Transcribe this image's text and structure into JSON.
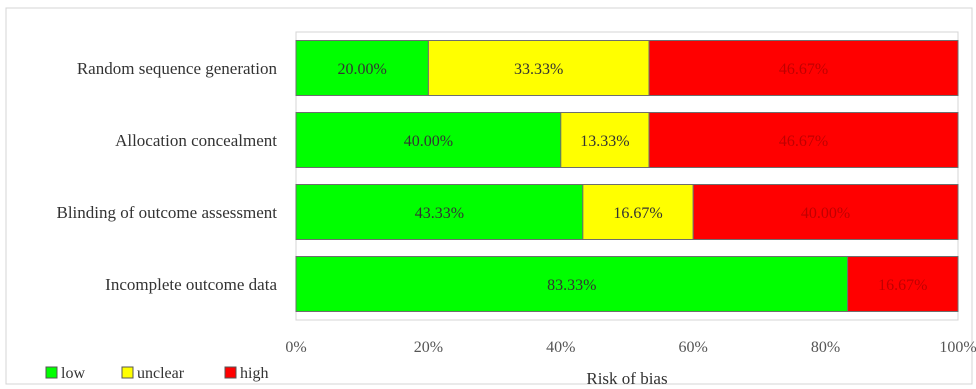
{
  "chart_data": {
    "type": "bar",
    "orientation": "horizontal",
    "stacked": true,
    "percent_scale": true,
    "categories": [
      "Random sequence generation",
      "Allocation concealment",
      "Blinding of outcome assessment",
      "Incomplete outcome data"
    ],
    "series": [
      {
        "name": "low",
        "color": "#00ff00",
        "label_color": "#333333",
        "values": [
          20.0,
          40.0,
          43.33,
          83.33
        ],
        "labels": [
          "20.00%",
          "40.00%",
          "43.33%",
          "83.33%"
        ]
      },
      {
        "name": "unclear",
        "color": "#ffff00",
        "label_color": "#333333",
        "values": [
          33.33,
          13.33,
          16.67,
          0
        ],
        "labels": [
          "33.33%",
          "13.33%",
          "16.67%",
          ""
        ]
      },
      {
        "name": "high",
        "color": "#ff0000",
        "label_color": "#c00000",
        "values": [
          46.67,
          46.67,
          40.0,
          16.67
        ],
        "labels": [
          "46.67%",
          "46.67%",
          "40.00%",
          "16.67%"
        ]
      }
    ],
    "xlim": [
      0,
      100
    ],
    "xticks": [
      0,
      20,
      40,
      60,
      80,
      100
    ],
    "xtick_labels": [
      "0%",
      "20%",
      "40%",
      "60%",
      "80%",
      "100%"
    ],
    "xlabel": "Risk of bias",
    "ylabel": "",
    "title": "",
    "legend_position": "bottom-left",
    "grid": false
  }
}
